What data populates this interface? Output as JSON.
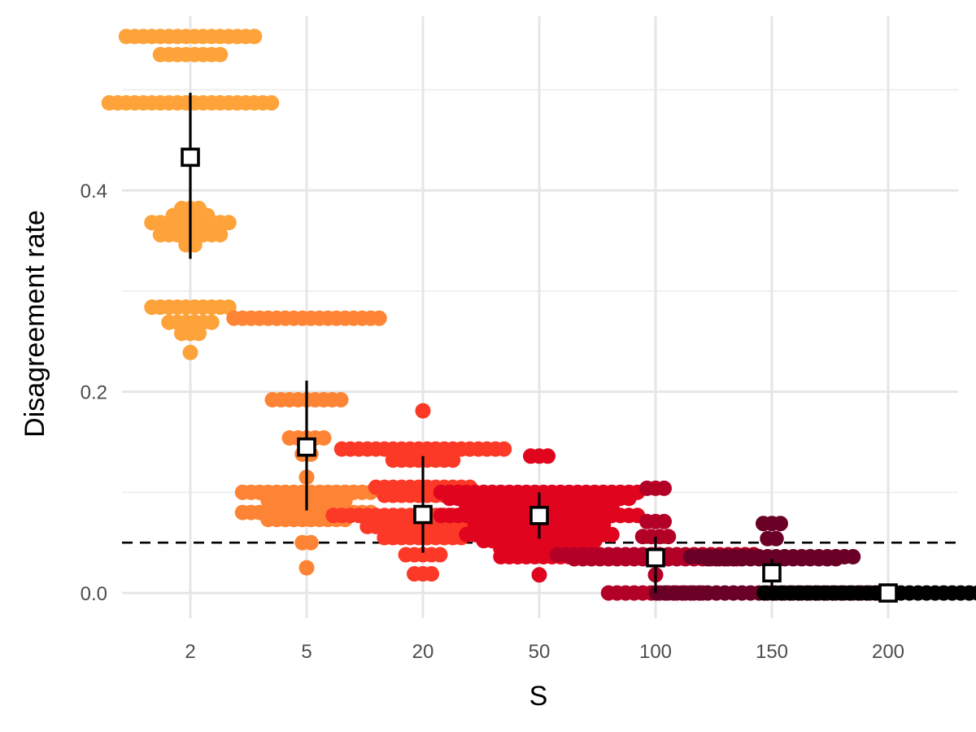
{
  "chart_data": {
    "type": "scatter",
    "subtype": "beeswarm-with-mean-and-error-bars",
    "title": "",
    "xlabel": "S",
    "ylabel": "Disagreement rate",
    "categories": [
      "2",
      "5",
      "20",
      "50",
      "100",
      "150",
      "200"
    ],
    "ylim": [
      -0.025,
      0.565
    ],
    "yticks": [
      "0.0",
      "0.2",
      "0.4"
    ],
    "grid": true,
    "legend": "none",
    "reference_line": {
      "y": 0.05,
      "style": "dashed",
      "color": "#000000"
    },
    "groups": [
      {
        "category": "2",
        "color": "#FEA23A",
        "mean": 0.433,
        "error_low": 0.332,
        "error_high": 0.497,
        "points": [
          {
            "y": 0.553,
            "n": 16
          },
          {
            "y": 0.535,
            "n": 8
          },
          {
            "y": 0.487,
            "n": 20
          },
          {
            "y": 0.382,
            "n": 3
          },
          {
            "y": 0.375,
            "n": 5
          },
          {
            "y": 0.368,
            "n": 10
          },
          {
            "y": 0.356,
            "n": 8
          },
          {
            "y": 0.346,
            "n": 2
          },
          {
            "y": 0.284,
            "n": 10
          },
          {
            "y": 0.269,
            "n": 6
          },
          {
            "y": 0.258,
            "n": 3
          },
          {
            "y": 0.239,
            "n": 1
          }
        ]
      },
      {
        "category": "5",
        "color": "#FD8434",
        "mean": 0.145,
        "error_low": 0.082,
        "error_high": 0.211,
        "points": [
          {
            "y": 0.273,
            "n": 18
          },
          {
            "y": 0.192,
            "n": 9
          },
          {
            "y": 0.154,
            "n": 5
          },
          {
            "y": 0.138,
            "n": 2
          },
          {
            "y": 0.115,
            "n": 1
          },
          {
            "y": 0.1,
            "n": 16
          },
          {
            "y": 0.092,
            "n": 10
          },
          {
            "y": 0.08,
            "n": 16
          },
          {
            "y": 0.073,
            "n": 10
          },
          {
            "y": 0.05,
            "n": 2
          },
          {
            "y": 0.025,
            "n": 1
          }
        ]
      },
      {
        "category": "20",
        "color": "#FC3926",
        "mean": 0.078,
        "error_low": 0.04,
        "error_high": 0.136,
        "points": [
          {
            "y": 0.181,
            "n": 1
          },
          {
            "y": 0.143,
            "n": 20
          },
          {
            "y": 0.132,
            "n": 8
          },
          {
            "y": 0.105,
            "n": 12
          },
          {
            "y": 0.097,
            "n": 10
          },
          {
            "y": 0.077,
            "n": 22
          },
          {
            "y": 0.066,
            "n": 14
          },
          {
            "y": 0.055,
            "n": 10
          },
          {
            "y": 0.038,
            "n": 5
          },
          {
            "y": 0.019,
            "n": 3
          }
        ]
      },
      {
        "category": "50",
        "color": "#E0041E",
        "mean": 0.077,
        "error_low": 0.054,
        "error_high": 0.1,
        "points": [
          {
            "y": 0.136,
            "n": 3
          },
          {
            "y": 0.1,
            "n": 24
          },
          {
            "y": 0.094,
            "n": 22
          },
          {
            "y": 0.086,
            "n": 18
          },
          {
            "y": 0.077,
            "n": 24
          },
          {
            "y": 0.068,
            "n": 16
          },
          {
            "y": 0.058,
            "n": 18
          },
          {
            "y": 0.052,
            "n": 14
          },
          {
            "y": 0.044,
            "n": 10
          },
          {
            "y": 0.036,
            "n": 10
          },
          {
            "y": 0.018,
            "n": 1
          }
        ]
      },
      {
        "category": "100",
        "color": "#B30026",
        "mean": 0.035,
        "error_low": 0.0,
        "error_high": 0.056,
        "points": [
          {
            "y": 0.104,
            "n": 3
          },
          {
            "y": 0.071,
            "n": 3
          },
          {
            "y": 0.056,
            "n": 4
          },
          {
            "y": 0.038,
            "n": 24
          },
          {
            "y": 0.034,
            "n": 20
          },
          {
            "y": 0.018,
            "n": 1
          },
          {
            "y": 0.0,
            "n": 12
          }
        ]
      },
      {
        "category": "150",
        "color": "#6A0026",
        "mean": 0.02,
        "error_low": 0.0,
        "error_high": 0.034,
        "points": [
          {
            "y": 0.069,
            "n": 3
          },
          {
            "y": 0.054,
            "n": 2
          },
          {
            "y": 0.036,
            "n": 20
          },
          {
            "y": 0.034,
            "n": 16
          },
          {
            "y": 0.0,
            "n": 28
          }
        ]
      },
      {
        "category": "200",
        "color": "#000000",
        "mean": 0.0,
        "error_low": 0.0,
        "error_high": 0.0,
        "points": [
          {
            "y": 0.0,
            "n": 30
          }
        ]
      }
    ]
  }
}
